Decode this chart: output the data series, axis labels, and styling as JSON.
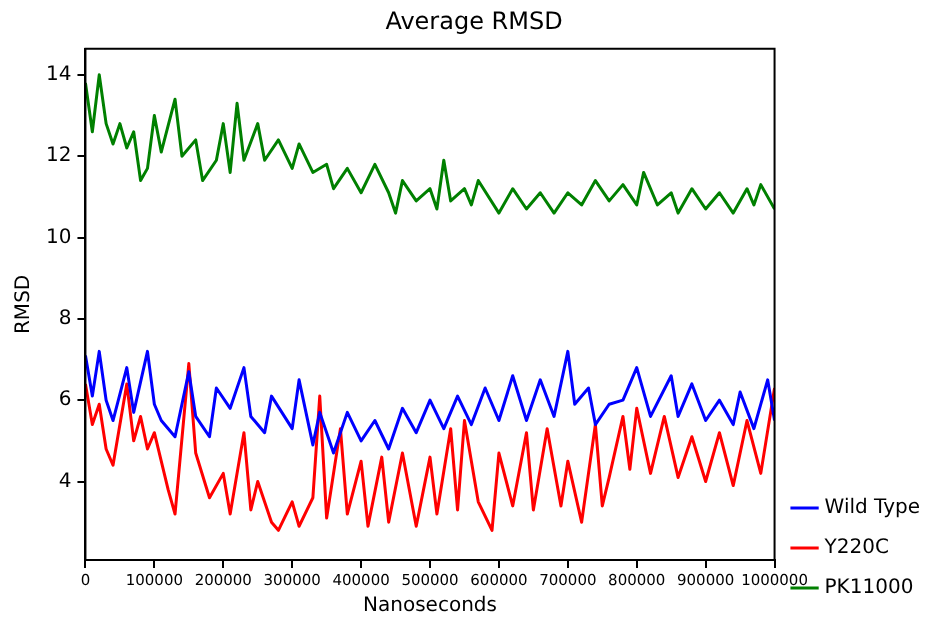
{
  "chart_data": {
    "type": "line",
    "title": "Average RMSD",
    "xlabel": "Nanoseconds",
    "ylabel": "RMSD",
    "xlim": [
      0,
      1000000
    ],
    "xticks": [
      0,
      100000,
      200000,
      300000,
      400000,
      500000,
      600000,
      700000,
      800000,
      900000,
      1000000
    ],
    "ylim": [
      2.07,
      14.64
    ],
    "yticks": [
      4,
      6,
      8,
      10,
      12,
      14
    ],
    "grid": false,
    "legend": "bottom right",
    "marker": "none",
    "line_style": "solid",
    "series": [
      {
        "name": "Wild Type",
        "color": "#0000ff",
        "x": [
          0,
          10000,
          20000,
          30000,
          40000,
          60000,
          70000,
          90000,
          100000,
          110000,
          130000,
          150000,
          160000,
          180000,
          190000,
          210000,
          230000,
          240000,
          260000,
          270000,
          300000,
          310000,
          330000,
          340000,
          360000,
          380000,
          400000,
          420000,
          440000,
          460000,
          480000,
          500000,
          520000,
          540000,
          560000,
          580000,
          600000,
          620000,
          640000,
          660000,
          680000,
          700000,
          710000,
          730000,
          740000,
          760000,
          780000,
          800000,
          820000,
          850000,
          860000,
          880000,
          900000,
          920000,
          940000,
          950000,
          970000,
          990000,
          1000000
        ],
        "values": [
          7.1,
          6.1,
          7.2,
          6.0,
          5.5,
          6.8,
          5.7,
          7.2,
          5.9,
          5.5,
          5.1,
          6.7,
          5.6,
          5.1,
          6.3,
          5.8,
          6.8,
          5.6,
          5.2,
          6.1,
          5.3,
          6.5,
          4.9,
          5.7,
          4.7,
          5.7,
          5.0,
          5.5,
          4.8,
          5.8,
          5.2,
          6.0,
          5.3,
          6.1,
          5.4,
          6.3,
          5.5,
          6.6,
          5.5,
          6.5,
          5.6,
          7.2,
          5.9,
          6.3,
          5.4,
          5.9,
          6.0,
          6.8,
          5.6,
          6.6,
          5.6,
          6.4,
          5.5,
          6.0,
          5.4,
          6.2,
          5.3,
          6.5,
          5.5
        ]
      },
      {
        "name": "Y220C",
        "color": "#ff0000",
        "x": [
          0,
          10000,
          20000,
          30000,
          40000,
          50000,
          60000,
          70000,
          80000,
          90000,
          100000,
          120000,
          130000,
          150000,
          160000,
          180000,
          200000,
          210000,
          230000,
          240000,
          250000,
          270000,
          280000,
          300000,
          310000,
          330000,
          340000,
          350000,
          370000,
          380000,
          400000,
          410000,
          430000,
          440000,
          460000,
          480000,
          500000,
          510000,
          530000,
          540000,
          550000,
          570000,
          590000,
          600000,
          620000,
          640000,
          650000,
          670000,
          690000,
          700000,
          720000,
          740000,
          750000,
          760000,
          780000,
          790000,
          800000,
          820000,
          840000,
          860000,
          880000,
          900000,
          920000,
          940000,
          960000,
          980000,
          1000000
        ],
        "values": [
          6.4,
          5.4,
          5.9,
          4.8,
          4.4,
          5.4,
          6.4,
          5.0,
          5.6,
          4.8,
          5.2,
          3.8,
          3.2,
          6.9,
          4.7,
          3.6,
          4.2,
          3.2,
          5.2,
          3.3,
          4.0,
          3.0,
          2.8,
          3.5,
          2.9,
          3.6,
          6.1,
          3.1,
          5.3,
          3.2,
          4.5,
          2.9,
          4.6,
          3.0,
          4.7,
          2.9,
          4.6,
          3.2,
          5.3,
          3.3,
          5.5,
          3.5,
          2.8,
          4.7,
          3.4,
          5.2,
          3.3,
          5.3,
          3.4,
          4.5,
          3.0,
          5.4,
          3.4,
          4.1,
          5.6,
          4.3,
          5.8,
          4.2,
          5.6,
          4.1,
          5.1,
          4.0,
          5.2,
          3.9,
          5.5,
          4.2,
          6.3
        ]
      },
      {
        "name": "PK11000",
        "color": "#008000",
        "x": [
          0,
          10000,
          20000,
          30000,
          40000,
          50000,
          60000,
          70000,
          80000,
          90000,
          100000,
          110000,
          130000,
          140000,
          160000,
          170000,
          190000,
          200000,
          210000,
          220000,
          230000,
          250000,
          260000,
          280000,
          300000,
          310000,
          330000,
          350000,
          360000,
          380000,
          400000,
          420000,
          440000,
          450000,
          460000,
          480000,
          500000,
          510000,
          520000,
          530000,
          550000,
          560000,
          570000,
          600000,
          620000,
          640000,
          660000,
          680000,
          700000,
          720000,
          740000,
          760000,
          780000,
          800000,
          810000,
          830000,
          850000,
          860000,
          880000,
          900000,
          920000,
          940000,
          960000,
          970000,
          980000,
          1000000
        ],
        "values": [
          13.8,
          12.6,
          14.0,
          12.8,
          12.3,
          12.8,
          12.2,
          12.6,
          11.4,
          11.7,
          13.0,
          12.1,
          13.4,
          12.0,
          12.4,
          11.4,
          11.9,
          12.8,
          11.6,
          13.3,
          11.9,
          12.8,
          11.9,
          12.4,
          11.7,
          12.3,
          11.6,
          11.8,
          11.2,
          11.7,
          11.1,
          11.8,
          11.1,
          10.6,
          11.4,
          10.9,
          11.2,
          10.7,
          11.9,
          10.9,
          11.2,
          10.8,
          11.4,
          10.6,
          11.2,
          10.7,
          11.1,
          10.6,
          11.1,
          10.8,
          11.4,
          10.9,
          11.3,
          10.8,
          11.6,
          10.8,
          11.1,
          10.6,
          11.2,
          10.7,
          11.1,
          10.6,
          11.2,
          10.8,
          11.3,
          10.7
        ]
      }
    ]
  }
}
